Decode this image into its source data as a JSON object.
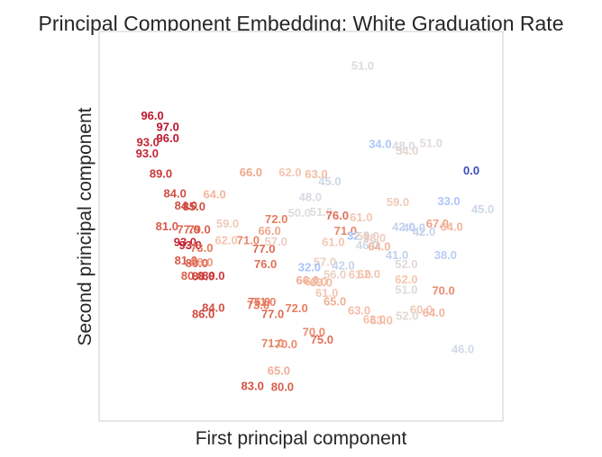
{
  "chart_data": {
    "type": "scatter",
    "title": "Principal Component Embedding: White Graduation Rate",
    "xlabel": "First principal component",
    "ylabel": "Second principal component",
    "xlim": [
      0,
      100
    ],
    "ylim": [
      0,
      100
    ],
    "grid": false,
    "legend": "none",
    "color_scale": "coolwarm (low value = blue, high value = red)",
    "color_range": [
      0,
      100
    ],
    "points": [
      {
        "x": 65.3,
        "y": 91.0,
        "label": "51.0"
      },
      {
        "x": 13.2,
        "y": 78.2,
        "label": "96.0"
      },
      {
        "x": 17.0,
        "y": 75.3,
        "label": "97.0"
      },
      {
        "x": 17.0,
        "y": 72.4,
        "label": "96.0"
      },
      {
        "x": 12.1,
        "y": 71.3,
        "label": "93.0"
      },
      {
        "x": 11.9,
        "y": 68.5,
        "label": "93.0"
      },
      {
        "x": 15.3,
        "y": 63.3,
        "label": "89.0"
      },
      {
        "x": 18.8,
        "y": 58.2,
        "label": "84.0"
      },
      {
        "x": 21.5,
        "y": 55.0,
        "label": "84.0"
      },
      {
        "x": 23.5,
        "y": 54.8,
        "label": "85.0"
      },
      {
        "x": 37.6,
        "y": 63.6,
        "label": "66.0"
      },
      {
        "x": 47.3,
        "y": 63.6,
        "label": "62.0"
      },
      {
        "x": 53.8,
        "y": 63.1,
        "label": "63.0"
      },
      {
        "x": 57.1,
        "y": 61.3,
        "label": "45.0"
      },
      {
        "x": 28.6,
        "y": 58.0,
        "label": "64.0"
      },
      {
        "x": 52.3,
        "y": 57.3,
        "label": "48.0"
      },
      {
        "x": 69.6,
        "y": 70.9,
        "label": "34.0"
      },
      {
        "x": 75.4,
        "y": 70.4,
        "label": "48.0"
      },
      {
        "x": 82.2,
        "y": 71.1,
        "label": "51.0"
      },
      {
        "x": 76.3,
        "y": 69.1,
        "label": "54.0"
      },
      {
        "x": 92.2,
        "y": 64.1,
        "label": "0.0"
      },
      {
        "x": 74.0,
        "y": 56.0,
        "label": "59.0"
      },
      {
        "x": 86.6,
        "y": 56.2,
        "label": "33.0"
      },
      {
        "x": 95.0,
        "y": 54.1,
        "label": "45.0"
      },
      {
        "x": 16.8,
        "y": 49.8,
        "label": "81.0"
      },
      {
        "x": 22.1,
        "y": 48.9,
        "label": "77.0"
      },
      {
        "x": 24.8,
        "y": 48.9,
        "label": "79.0"
      },
      {
        "x": 31.8,
        "y": 50.4,
        "label": "59.0"
      },
      {
        "x": 43.9,
        "y": 51.6,
        "label": "72.0"
      },
      {
        "x": 49.6,
        "y": 53.2,
        "label": "50.0"
      },
      {
        "x": 55.0,
        "y": 53.4,
        "label": "51.0"
      },
      {
        "x": 59.0,
        "y": 52.5,
        "label": "76.0"
      },
      {
        "x": 64.9,
        "y": 52.1,
        "label": "61.0"
      },
      {
        "x": 42.2,
        "y": 48.6,
        "label": "66.0"
      },
      {
        "x": 31.5,
        "y": 46.2,
        "label": "62.0"
      },
      {
        "x": 21.3,
        "y": 45.7,
        "label": "93.0"
      },
      {
        "x": 22.6,
        "y": 44.9,
        "label": "93.0"
      },
      {
        "x": 25.4,
        "y": 44.2,
        "label": "73.0"
      },
      {
        "x": 36.9,
        "y": 46.2,
        "label": "71.0"
      },
      {
        "x": 40.8,
        "y": 44.0,
        "label": "77.0"
      },
      {
        "x": 43.8,
        "y": 45.8,
        "label": "57.0"
      },
      {
        "x": 61.0,
        "y": 48.6,
        "label": "71.0"
      },
      {
        "x": 64.2,
        "y": 47.3,
        "label": "32.0"
      },
      {
        "x": 66.6,
        "y": 47.2,
        "label": "56.0"
      },
      {
        "x": 68.2,
        "y": 46.8,
        "label": "58.0"
      },
      {
        "x": 75.4,
        "y": 49.6,
        "label": "42.0"
      },
      {
        "x": 78.0,
        "y": 49.4,
        "label": "40.0"
      },
      {
        "x": 80.5,
        "y": 48.4,
        "label": "42.0"
      },
      {
        "x": 83.8,
        "y": 50.4,
        "label": "67.0"
      },
      {
        "x": 87.3,
        "y": 49.6,
        "label": "64.0"
      },
      {
        "x": 58.0,
        "y": 45.7,
        "label": "61.0"
      },
      {
        "x": 66.4,
        "y": 44.9,
        "label": "46.0"
      },
      {
        "x": 69.4,
        "y": 44.5,
        "label": "64.0"
      },
      {
        "x": 21.5,
        "y": 41.0,
        "label": "81.0"
      },
      {
        "x": 24.2,
        "y": 40.3,
        "label": "80.0"
      },
      {
        "x": 25.4,
        "y": 40.5,
        "label": "68.0"
      },
      {
        "x": 41.2,
        "y": 40.0,
        "label": "76.0"
      },
      {
        "x": 55.9,
        "y": 40.6,
        "label": "57.0"
      },
      {
        "x": 60.5,
        "y": 39.7,
        "label": "42.0"
      },
      {
        "x": 73.8,
        "y": 42.4,
        "label": "41.0"
      },
      {
        "x": 85.8,
        "y": 42.4,
        "label": "38.0"
      },
      {
        "x": 76.1,
        "y": 40.0,
        "label": "52.0"
      },
      {
        "x": 52.1,
        "y": 39.2,
        "label": "32.0"
      },
      {
        "x": 23.1,
        "y": 37.1,
        "label": "80.0"
      },
      {
        "x": 25.8,
        "y": 36.9,
        "label": "88.0"
      },
      {
        "x": 28.3,
        "y": 37.1,
        "label": "89.0"
      },
      {
        "x": 58.4,
        "y": 37.4,
        "label": "56.0"
      },
      {
        "x": 64.6,
        "y": 37.4,
        "label": "61.0"
      },
      {
        "x": 66.8,
        "y": 37.5,
        "label": "62.0"
      },
      {
        "x": 51.6,
        "y": 35.9,
        "label": "66.0"
      },
      {
        "x": 53.7,
        "y": 35.6,
        "label": "63.0"
      },
      {
        "x": 55.0,
        "y": 35.3,
        "label": "63.0"
      },
      {
        "x": 76.1,
        "y": 36.1,
        "label": "62.0"
      },
      {
        "x": 76.1,
        "y": 33.5,
        "label": "51.0"
      },
      {
        "x": 85.3,
        "y": 33.2,
        "label": "70.0"
      },
      {
        "x": 56.4,
        "y": 32.7,
        "label": "61.0"
      },
      {
        "x": 58.4,
        "y": 30.5,
        "label": "65.0"
      },
      {
        "x": 39.6,
        "y": 30.3,
        "label": "75.0"
      },
      {
        "x": 41.0,
        "y": 30.3,
        "label": "71.0"
      },
      {
        "x": 39.4,
        "y": 29.5,
        "label": "73.0"
      },
      {
        "x": 28.3,
        "y": 28.8,
        "label": "84.0"
      },
      {
        "x": 25.8,
        "y": 27.2,
        "label": "86.0"
      },
      {
        "x": 43.0,
        "y": 27.2,
        "label": "77.0"
      },
      {
        "x": 48.9,
        "y": 28.7,
        "label": "72.0"
      },
      {
        "x": 64.4,
        "y": 28.2,
        "label": "63.0"
      },
      {
        "x": 79.8,
        "y": 28.4,
        "label": "60.0"
      },
      {
        "x": 82.9,
        "y": 27.6,
        "label": "64.0"
      },
      {
        "x": 76.3,
        "y": 26.8,
        "label": "52.0"
      },
      {
        "x": 68.2,
        "y": 25.8,
        "label": "63.0"
      },
      {
        "x": 69.9,
        "y": 25.6,
        "label": "63.0"
      },
      {
        "x": 53.2,
        "y": 22.6,
        "label": "70.0"
      },
      {
        "x": 55.2,
        "y": 20.6,
        "label": "75.0"
      },
      {
        "x": 43.0,
        "y": 19.7,
        "label": "71.0"
      },
      {
        "x": 46.3,
        "y": 19.5,
        "label": "70.0"
      },
      {
        "x": 90.1,
        "y": 18.2,
        "label": "46.0"
      },
      {
        "x": 44.5,
        "y": 12.7,
        "label": "65.0"
      },
      {
        "x": 38.0,
        "y": 8.7,
        "label": "83.0"
      },
      {
        "x": 45.4,
        "y": 8.5,
        "label": "80.0"
      }
    ]
  }
}
